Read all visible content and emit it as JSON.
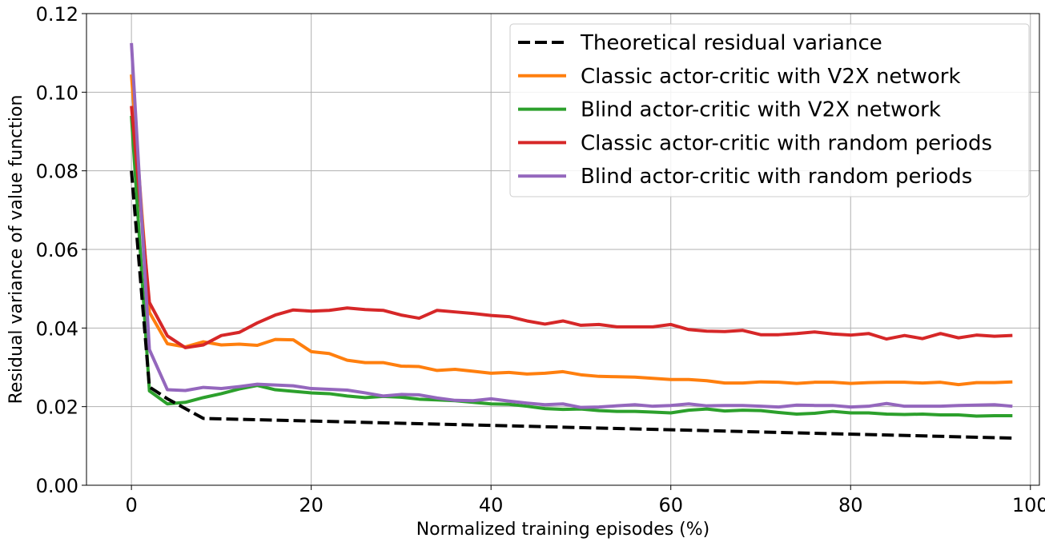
{
  "chart_data": {
    "type": "line",
    "title": "",
    "xlabel": "Normalized training episodes (%)",
    "ylabel": "Residual variance of value function",
    "xlim": [
      -5,
      101
    ],
    "ylim": [
      0,
      0.12
    ],
    "x_ticks": [
      0,
      20,
      40,
      60,
      80,
      100
    ],
    "x_tick_labels": [
      "0",
      "20",
      "40",
      "60",
      "80",
      "100"
    ],
    "y_ticks": [
      0,
      0.02,
      0.04,
      0.06,
      0.08,
      0.1,
      0.12
    ],
    "y_tick_labels": [
      "0.00",
      "0.02",
      "0.04",
      "0.06",
      "0.08",
      "0.10",
      "0.12"
    ],
    "grid": true,
    "legend_position": "top-right",
    "series": [
      {
        "name": "Theoretical residual variance",
        "color": "#000000",
        "dashed": true,
        "x": [
          0,
          2,
          4,
          8,
          98
        ],
        "y": [
          0.08,
          0.025,
          0.022,
          0.017,
          0.012
        ]
      },
      {
        "name": "Classic actor-critic with V2X network",
        "color": "#ff7f0e",
        "dashed": false,
        "x": [
          0,
          2,
          4,
          6,
          8,
          10,
          12,
          14,
          16,
          18,
          20,
          22,
          24,
          26,
          28,
          30,
          32,
          34,
          36,
          38,
          40,
          42,
          44,
          46,
          48,
          50,
          52,
          54,
          56,
          58,
          60,
          62,
          64,
          66,
          68,
          70,
          72,
          74,
          76,
          78,
          80,
          82,
          84,
          86,
          88,
          90,
          92,
          94,
          96,
          98
        ],
        "y": [
          0.1045,
          0.044,
          0.036,
          0.0352,
          0.0365,
          0.0357,
          0.0359,
          0.0356,
          0.0371,
          0.037,
          0.034,
          0.0335,
          0.0318,
          0.0312,
          0.0312,
          0.0303,
          0.0302,
          0.0292,
          0.0295,
          0.029,
          0.0285,
          0.0287,
          0.0283,
          0.0285,
          0.0289,
          0.0281,
          0.0277,
          0.0276,
          0.0275,
          0.0272,
          0.0269,
          0.0269,
          0.0266,
          0.026,
          0.026,
          0.0263,
          0.0262,
          0.0259,
          0.0262,
          0.0262,
          0.0259,
          0.0261,
          0.0262,
          0.0262,
          0.026,
          0.0262,
          0.0256,
          0.0261,
          0.0261,
          0.0263
        ]
      },
      {
        "name": "Blind actor-critic with V2X network",
        "color": "#2ca02c",
        "dashed": false,
        "x": [
          0,
          2,
          4,
          6,
          8,
          10,
          12,
          14,
          16,
          18,
          20,
          22,
          24,
          26,
          28,
          30,
          32,
          34,
          36,
          38,
          40,
          42,
          44,
          46,
          48,
          50,
          52,
          54,
          56,
          58,
          60,
          62,
          64,
          66,
          68,
          70,
          72,
          74,
          76,
          78,
          80,
          82,
          84,
          86,
          88,
          90,
          92,
          94,
          96,
          98
        ],
        "y": [
          0.094,
          0.024,
          0.0207,
          0.0211,
          0.0223,
          0.0233,
          0.0245,
          0.0254,
          0.0243,
          0.0239,
          0.0235,
          0.0233,
          0.0227,
          0.0223,
          0.0226,
          0.0224,
          0.0219,
          0.0217,
          0.0215,
          0.0211,
          0.0207,
          0.0206,
          0.0201,
          0.0195,
          0.0193,
          0.0194,
          0.019,
          0.0188,
          0.0188,
          0.0186,
          0.0184,
          0.0191,
          0.0194,
          0.0189,
          0.0191,
          0.019,
          0.0185,
          0.0181,
          0.0183,
          0.0188,
          0.0184,
          0.0184,
          0.0181,
          0.018,
          0.0181,
          0.0179,
          0.0179,
          0.0176,
          0.0177,
          0.0177
        ]
      },
      {
        "name": "Classic actor-critic with random periods",
        "color": "#d62728",
        "dashed": false,
        "x": [
          0,
          2,
          4,
          6,
          8,
          10,
          12,
          14,
          16,
          18,
          20,
          22,
          24,
          26,
          28,
          30,
          32,
          34,
          36,
          38,
          40,
          42,
          44,
          46,
          48,
          50,
          52,
          54,
          56,
          58,
          60,
          62,
          64,
          66,
          68,
          70,
          72,
          74,
          76,
          78,
          80,
          82,
          84,
          86,
          88,
          90,
          92,
          94,
          96,
          98
        ],
        "y": [
          0.0965,
          0.0465,
          0.038,
          0.035,
          0.0357,
          0.0381,
          0.0389,
          0.0413,
          0.0433,
          0.0446,
          0.0443,
          0.0445,
          0.0451,
          0.0447,
          0.0445,
          0.0433,
          0.0425,
          0.0445,
          0.0441,
          0.0437,
          0.0432,
          0.0429,
          0.0418,
          0.041,
          0.0418,
          0.0407,
          0.0409,
          0.0403,
          0.0403,
          0.0403,
          0.0409,
          0.0396,
          0.0392,
          0.0391,
          0.0394,
          0.0383,
          0.0383,
          0.0386,
          0.039,
          0.0385,
          0.0382,
          0.0386,
          0.0372,
          0.0381,
          0.0373,
          0.0386,
          0.0375,
          0.0382,
          0.0379,
          0.0381
        ]
      },
      {
        "name": "Blind actor-critic with random periods",
        "color": "#9467bd",
        "dashed": false,
        "x": [
          0,
          2,
          4,
          6,
          8,
          10,
          12,
          14,
          16,
          18,
          20,
          22,
          24,
          26,
          28,
          30,
          32,
          34,
          36,
          38,
          40,
          42,
          44,
          46,
          48,
          50,
          52,
          54,
          56,
          58,
          60,
          62,
          64,
          66,
          68,
          70,
          72,
          74,
          76,
          78,
          80,
          82,
          84,
          86,
          88,
          90,
          92,
          94,
          96,
          98
        ],
        "y": [
          0.1125,
          0.0345,
          0.0243,
          0.0241,
          0.0249,
          0.0246,
          0.0251,
          0.0257,
          0.0255,
          0.0253,
          0.0246,
          0.0244,
          0.0242,
          0.0235,
          0.0227,
          0.0231,
          0.023,
          0.0222,
          0.0216,
          0.0215,
          0.022,
          0.0214,
          0.0209,
          0.0205,
          0.0207,
          0.0198,
          0.0199,
          0.0202,
          0.0205,
          0.0201,
          0.0203,
          0.0207,
          0.0202,
          0.0203,
          0.0203,
          0.0201,
          0.0199,
          0.0204,
          0.0203,
          0.0203,
          0.0199,
          0.0201,
          0.0208,
          0.0201,
          0.0201,
          0.0201,
          0.0203,
          0.0204,
          0.0205,
          0.0201
        ]
      }
    ]
  }
}
